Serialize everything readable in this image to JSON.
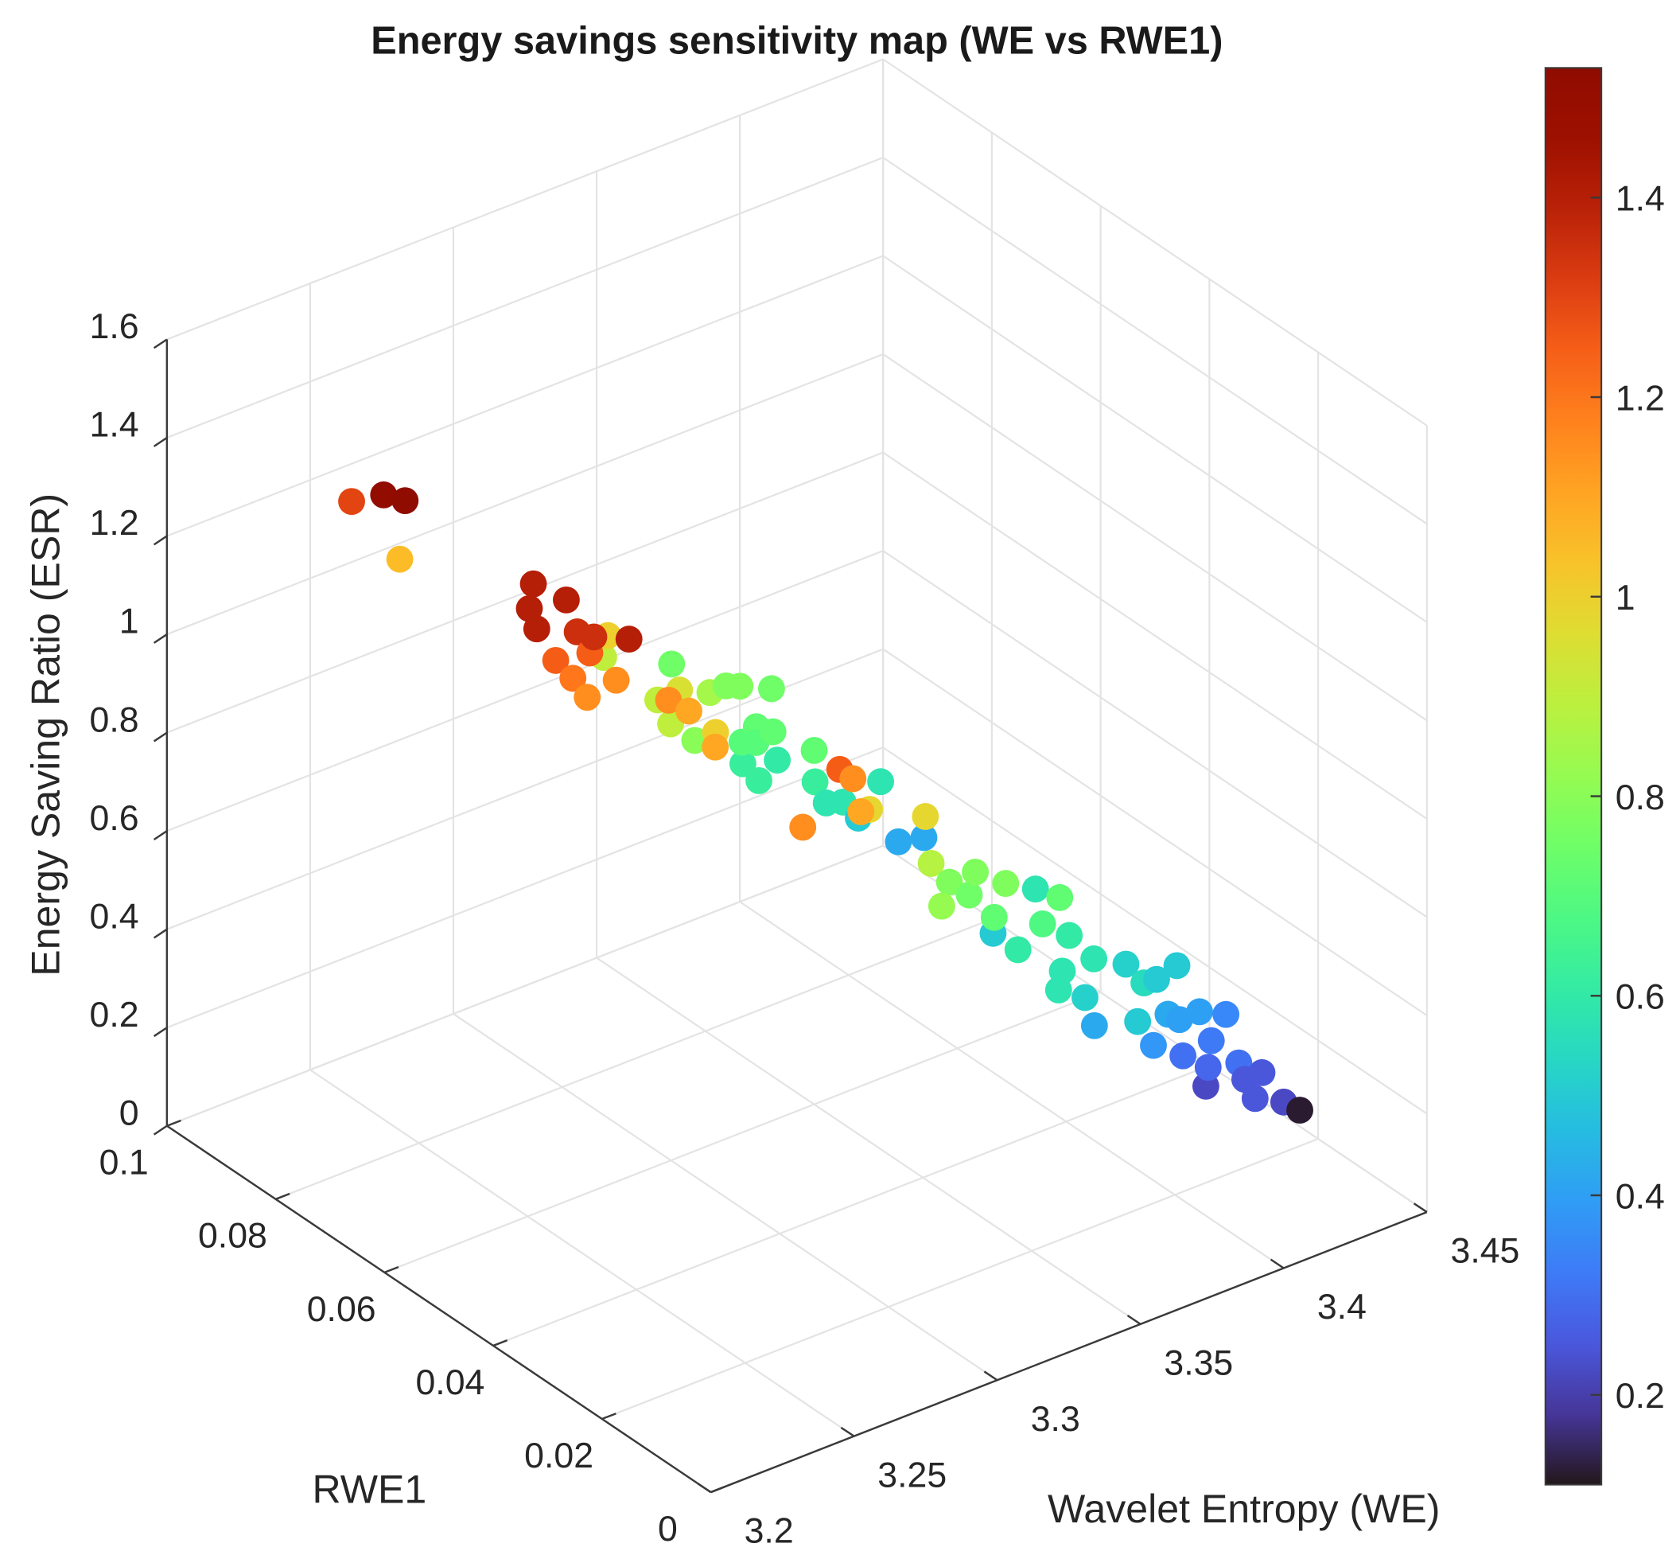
{
  "chart_data": {
    "type": "scatter",
    "subtype": "scatter3d",
    "title": "Energy savings sensitivity map (WE vs RWE1)",
    "xlabel": "Wavelet Entropy (WE)",
    "ylabel": "RWE1",
    "zlabel": "Energy Saving Ratio (ESR)",
    "xlim": [
      3.2,
      3.45
    ],
    "ylim": [
      0,
      0.1
    ],
    "zlim": [
      0,
      1.6
    ],
    "xticks": [
      "3.2",
      "3.25",
      "3.3",
      "3.35",
      "3.4",
      "3.45"
    ],
    "yticks": [
      "0",
      "0.02",
      "0.04",
      "0.06",
      "0.08",
      "0.1"
    ],
    "zticks": [
      "0",
      "0.2",
      "0.4",
      "0.6",
      "0.8",
      "1",
      "1.2",
      "1.4",
      "1.6"
    ],
    "grid": true,
    "colormap": "turbo",
    "color_by": "ESR",
    "clim": [
      0.11,
      1.53
    ],
    "colorbar_ticks": [
      "0.2",
      "0.4",
      "0.6",
      "0.8",
      "1",
      "1.2",
      "1.4"
    ],
    "point_fields": [
      "WE",
      "RWE1",
      "ESR"
    ],
    "points": [
      [
        3.236,
        0.085,
        1.3
      ],
      [
        3.213,
        0.067,
        1.5
      ],
      [
        3.211,
        0.062,
        1.53
      ],
      [
        3.268,
        0.093,
        1.05
      ],
      [
        3.233,
        0.05,
        1.4
      ],
      [
        3.224,
        0.046,
        1.4
      ],
      [
        3.219,
        0.042,
        1.4
      ],
      [
        3.235,
        0.045,
        1.4
      ],
      [
        3.235,
        0.043,
        1.35
      ],
      [
        3.237,
        0.041,
        1.35
      ],
      [
        3.297,
        0.07,
        1.0
      ],
      [
        3.236,
        0.034,
        1.4
      ],
      [
        3.247,
        0.047,
        1.25
      ],
      [
        3.237,
        0.048,
        1.25
      ],
      [
        3.243,
        0.048,
        1.2
      ],
      [
        3.248,
        0.048,
        1.15
      ],
      [
        3.26,
        0.049,
        1.15
      ],
      [
        3.305,
        0.075,
        0.9
      ],
      [
        3.342,
        0.082,
        0.75
      ],
      [
        3.303,
        0.064,
        0.9
      ],
      [
        3.265,
        0.042,
        1.15
      ],
      [
        3.303,
        0.06,
        0.95
      ],
      [
        3.274,
        0.043,
        1.1
      ],
      [
        3.325,
        0.066,
        0.85
      ],
      [
        3.342,
        0.072,
        0.78
      ],
      [
        3.345,
        0.071,
        0.78
      ],
      [
        3.356,
        0.071,
        0.75
      ],
      [
        3.298,
        0.059,
        0.9
      ],
      [
        3.314,
        0.063,
        0.8
      ],
      [
        3.289,
        0.046,
        1.0
      ],
      [
        3.268,
        0.035,
        1.1
      ],
      [
        3.346,
        0.071,
        0.62
      ],
      [
        3.345,
        0.068,
        0.72
      ],
      [
        3.343,
        0.067,
        0.7
      ],
      [
        3.347,
        0.066,
        0.72
      ],
      [
        3.358,
        0.071,
        0.6
      ],
      [
        3.344,
        0.067,
        0.62
      ],
      [
        3.34,
        0.068,
        0.7
      ],
      [
        3.35,
        0.06,
        0.72
      ],
      [
        3.356,
        0.063,
        0.62
      ],
      [
        3.264,
        0.01,
        1.25
      ],
      [
        3.28,
        0.016,
        1.15
      ],
      [
        3.358,
        0.062,
        0.58
      ],
      [
        3.362,
        0.061,
        0.58
      ],
      [
        3.279,
        0.014,
        1.1
      ],
      [
        3.301,
        0.024,
        0.98
      ],
      [
        3.373,
        0.064,
        0.5
      ],
      [
        3.377,
        0.062,
        0.58
      ],
      [
        3.253,
        0.011,
        1.15
      ],
      [
        3.387,
        0.064,
        0.42
      ],
      [
        3.394,
        0.063,
        0.42
      ],
      [
        3.311,
        0.019,
        0.98
      ],
      [
        3.313,
        0.019,
        0.88
      ],
      [
        3.327,
        0.023,
        0.78
      ],
      [
        3.311,
        0.016,
        0.82
      ],
      [
        3.336,
        0.023,
        0.78
      ],
      [
        3.332,
        0.022,
        0.75
      ],
      [
        3.339,
        0.019,
        0.78
      ],
      [
        3.335,
        0.019,
        0.72
      ],
      [
        3.365,
        0.035,
        0.5
      ],
      [
        3.376,
        0.033,
        0.58
      ],
      [
        3.356,
        0.018,
        0.72
      ],
      [
        3.349,
        0.022,
        0.6
      ],
      [
        3.35,
        0.018,
        0.68
      ],
      [
        3.365,
        0.021,
        0.6
      ],
      [
        3.355,
        0.017,
        0.58
      ],
      [
        3.348,
        0.014,
        0.58
      ],
      [
        3.361,
        0.016,
        0.52
      ],
      [
        3.366,
        0.017,
        0.58
      ],
      [
        3.381,
        0.019,
        0.52
      ],
      [
        3.374,
        0.012,
        0.55
      ],
      [
        3.386,
        0.016,
        0.5
      ],
      [
        3.395,
        0.017,
        0.5
      ],
      [
        3.368,
        0.01,
        0.5
      ],
      [
        3.37,
        0.019,
        0.42
      ],
      [
        3.39,
        0.016,
        0.42
      ],
      [
        3.394,
        0.016,
        0.4
      ],
      [
        3.401,
        0.016,
        0.4
      ],
      [
        3.414,
        0.018,
        0.35
      ],
      [
        3.383,
        0.015,
        0.38
      ],
      [
        3.399,
        0.018,
        0.3
      ],
      [
        3.407,
        0.017,
        0.32
      ],
      [
        3.409,
        0.013,
        0.3
      ],
      [
        3.413,
        0.014,
        0.25
      ],
      [
        3.419,
        0.014,
        0.25
      ],
      [
        3.407,
        0.018,
        0.22
      ],
      [
        3.409,
        0.01,
        0.25
      ],
      [
        3.419,
        0.01,
        0.22
      ],
      [
        3.436,
        0.016,
        0.12
      ],
      [
        3.404,
        0.016,
        0.28
      ]
    ]
  }
}
